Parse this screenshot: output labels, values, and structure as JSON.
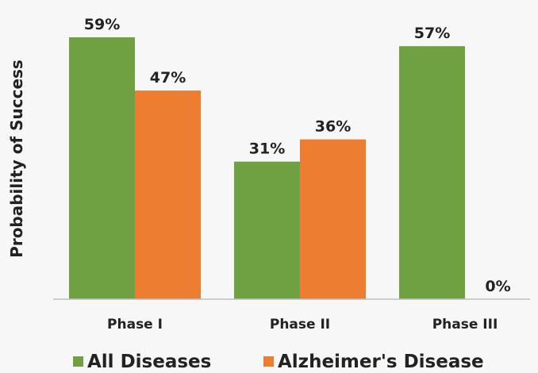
{
  "chart_data": {
    "type": "bar",
    "ylabel": "Probability of Success",
    "categories": [
      "Phase I",
      "Phase II",
      "Phase III"
    ],
    "series": [
      {
        "name": "All Diseases",
        "values": [
          59,
          31,
          57
        ],
        "labels": [
          "59%",
          "31%",
          "57%"
        ],
        "color": "#6fa143"
      },
      {
        "name": "Alzheimer's Disease",
        "values": [
          47,
          36,
          0
        ],
        "labels": [
          "47%",
          "36%",
          "0%"
        ],
        "color": "#ed7d31"
      }
    ],
    "ylim": [
      0,
      65
    ],
    "grid": false,
    "legend_position": "bottom"
  }
}
